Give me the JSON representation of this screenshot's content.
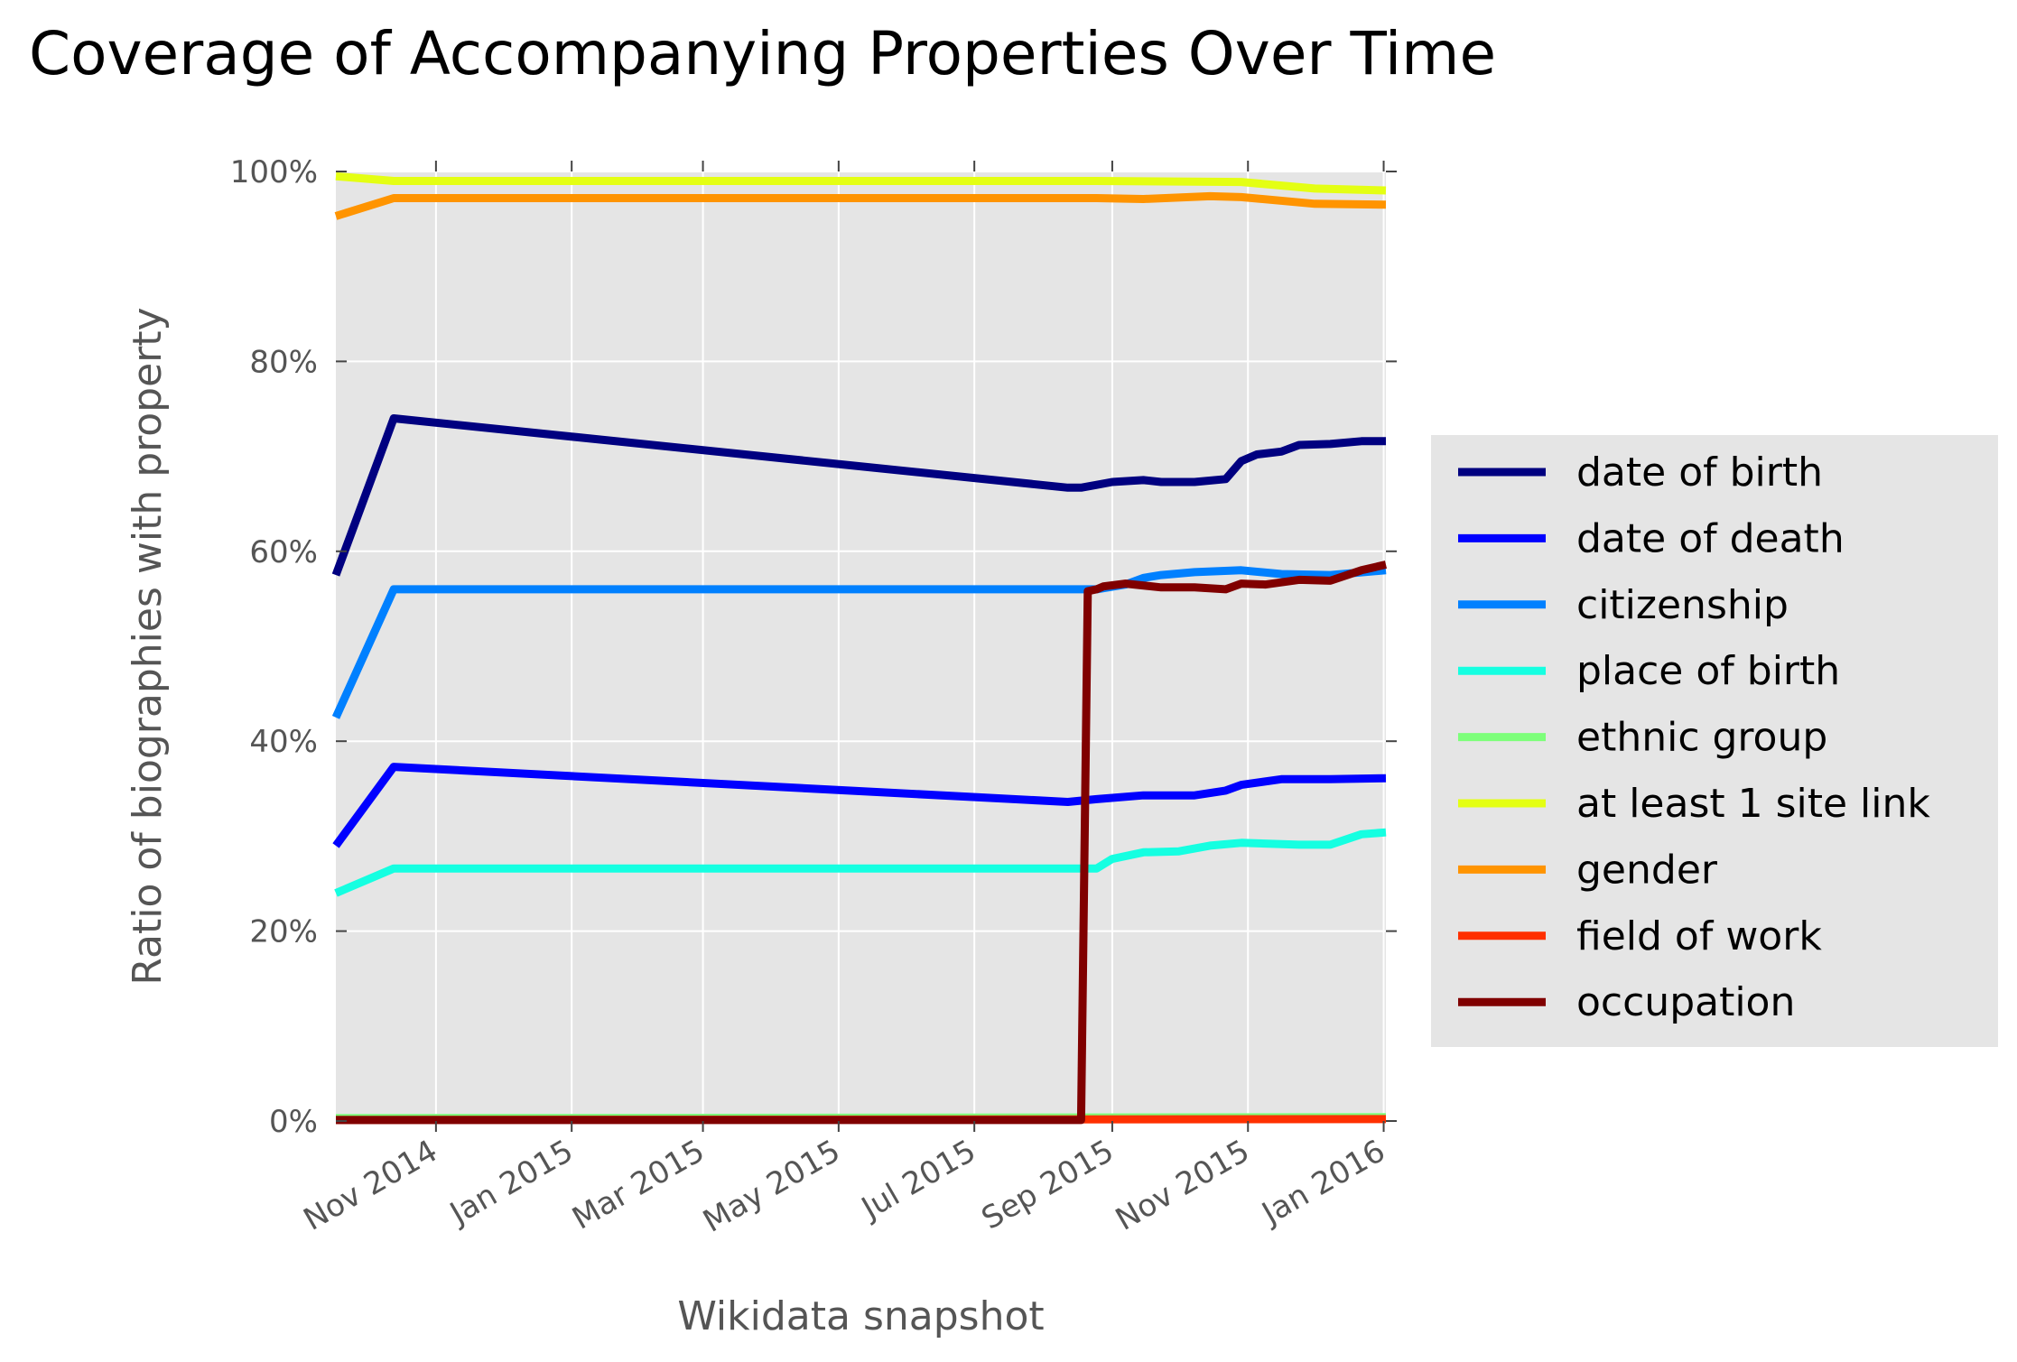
{
  "chart_data": {
    "type": "line",
    "title": "Coverage of Accompanying Properties Over Time",
    "xlabel": "Wikidata snapshot",
    "ylabel": "Ratio of biographies with property",
    "x_tick_labels": [
      "Nov 2014",
      "Jan 2015",
      "Mar 2015",
      "May 2015",
      "Jul 2015",
      "Sep 2015",
      "Nov 2015",
      "Jan 2016"
    ],
    "x_tick_dates": [
      "2014-11-01",
      "2015-01-01",
      "2015-03-01",
      "2015-05-01",
      "2015-07-01",
      "2015-09-01",
      "2015-11-01",
      "2016-01-01"
    ],
    "x_range": [
      "2014-09-17",
      "2016-01-02"
    ],
    "y_tick_labels": [
      "0%",
      "20%",
      "40%",
      "60%",
      "80%",
      "100%"
    ],
    "y_ticks": [
      0,
      20,
      40,
      60,
      80,
      100
    ],
    "ylim": [
      0,
      100
    ],
    "grid": true,
    "legend_position": "center-right-outside",
    "series": [
      {
        "name": "date of birth",
        "color": "#000080",
        "points": [
          [
            "2014-09-17",
            57.5
          ],
          [
            "2014-10-13",
            74
          ],
          [
            "2015-08-12",
            66.7
          ],
          [
            "2015-08-18",
            66.7
          ],
          [
            "2015-08-25",
            67
          ],
          [
            "2015-09-01",
            67.3
          ],
          [
            "2015-09-15",
            67.5
          ],
          [
            "2015-09-23",
            67.3
          ],
          [
            "2015-10-08",
            67.3
          ],
          [
            "2015-10-22",
            67.6
          ],
          [
            "2015-10-29",
            69.5
          ],
          [
            "2015-11-05",
            70.2
          ],
          [
            "2015-11-16",
            70.5
          ],
          [
            "2015-11-24",
            71.2
          ],
          [
            "2015-12-08",
            71.3
          ],
          [
            "2015-12-22",
            71.6
          ],
          [
            "2016-01-02",
            71.6
          ]
        ]
      },
      {
        "name": "date of death",
        "color": "#0000ff",
        "points": [
          [
            "2014-09-17",
            29
          ],
          [
            "2014-10-13",
            37.3
          ],
          [
            "2015-08-12",
            33.6
          ],
          [
            "2015-08-25",
            33.9
          ],
          [
            "2015-09-15",
            34.3
          ],
          [
            "2015-10-08",
            34.3
          ],
          [
            "2015-10-22",
            34.8
          ],
          [
            "2015-10-29",
            35.4
          ],
          [
            "2015-11-16",
            36
          ],
          [
            "2015-12-08",
            36
          ],
          [
            "2016-01-02",
            36.1
          ]
        ]
      },
      {
        "name": "citizenship",
        "color": "#0080ff",
        "points": [
          [
            "2014-09-17",
            42.5
          ],
          [
            "2014-10-13",
            56
          ],
          [
            "2015-08-12",
            56
          ],
          [
            "2015-08-25",
            56
          ],
          [
            "2015-09-07",
            56.5
          ],
          [
            "2015-09-15",
            57.2
          ],
          [
            "2015-09-23",
            57.5
          ],
          [
            "2015-10-08",
            57.8
          ],
          [
            "2015-10-29",
            58
          ],
          [
            "2015-11-16",
            57.6
          ],
          [
            "2015-12-08",
            57.5
          ],
          [
            "2016-01-02",
            58
          ]
        ]
      },
      {
        "name": "place of birth",
        "color": "#15ffe1",
        "points": [
          [
            "2014-09-17",
            24
          ],
          [
            "2014-10-13",
            26.6
          ],
          [
            "2015-08-12",
            26.6
          ],
          [
            "2015-08-25",
            26.6
          ],
          [
            "2015-09-01",
            27.6
          ],
          [
            "2015-09-15",
            28.3
          ],
          [
            "2015-10-01",
            28.4
          ],
          [
            "2015-10-15",
            29
          ],
          [
            "2015-10-29",
            29.3
          ],
          [
            "2015-11-24",
            29.1
          ],
          [
            "2015-12-08",
            29.1
          ],
          [
            "2015-12-22",
            30.2
          ],
          [
            "2016-01-02",
            30.4
          ]
        ]
      },
      {
        "name": "ethnic group",
        "color": "#7dff7a",
        "points": [
          [
            "2014-09-17",
            0.3
          ],
          [
            "2016-01-02",
            0.4
          ]
        ]
      },
      {
        "name": "at least 1 site link",
        "color": "#e4ff13",
        "points": [
          [
            "2014-09-17",
            99.5
          ],
          [
            "2014-10-13",
            99
          ],
          [
            "2015-08-25",
            99
          ],
          [
            "2015-10-29",
            98.9
          ],
          [
            "2015-12-01",
            98.2
          ],
          [
            "2016-01-02",
            98
          ]
        ]
      },
      {
        "name": "gender",
        "color": "#ff9400",
        "points": [
          [
            "2014-09-17",
            95.3
          ],
          [
            "2014-10-13",
            97.2
          ],
          [
            "2015-08-25",
            97.2
          ],
          [
            "2015-09-15",
            97.1
          ],
          [
            "2015-10-15",
            97.4
          ],
          [
            "2015-10-29",
            97.3
          ],
          [
            "2015-12-01",
            96.6
          ],
          [
            "2016-01-02",
            96.5
          ]
        ]
      },
      {
        "name": "field of work",
        "color": "#ff3000",
        "points": [
          [
            "2014-09-17",
            0.1
          ],
          [
            "2016-01-02",
            0.2
          ]
        ]
      },
      {
        "name": "occupation",
        "color": "#800000",
        "points": [
          [
            "2014-09-17",
            0.1
          ],
          [
            "2015-08-18",
            0.1
          ],
          [
            "2015-08-21",
            55.8
          ],
          [
            "2015-08-25",
            56
          ],
          [
            "2015-08-28",
            56.3
          ],
          [
            "2015-09-07",
            56.6
          ],
          [
            "2015-09-23",
            56.2
          ],
          [
            "2015-10-08",
            56.2
          ],
          [
            "2015-10-22",
            56
          ],
          [
            "2015-10-29",
            56.6
          ],
          [
            "2015-11-09",
            56.5
          ],
          [
            "2015-11-24",
            57
          ],
          [
            "2015-12-08",
            56.9
          ],
          [
            "2015-12-22",
            58
          ],
          [
            "2016-01-02",
            58.6
          ]
        ]
      }
    ]
  }
}
